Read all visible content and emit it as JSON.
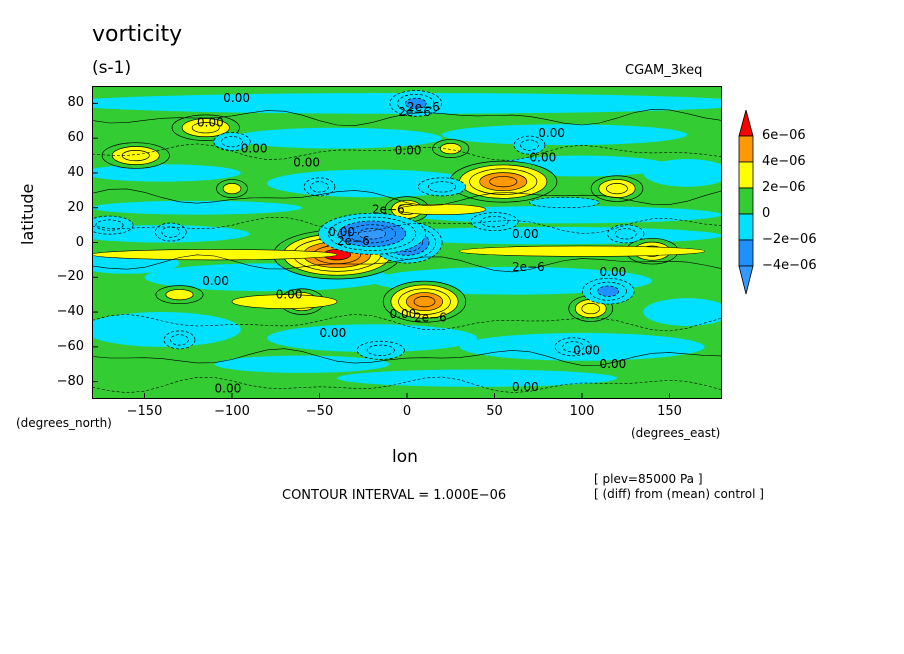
{
  "header": {
    "title": "vorticity",
    "units": "(s-1)",
    "run_name": "CGAM_3keq"
  },
  "axes": {
    "ylabel": "latitude",
    "xlabel": "lon",
    "y_units": "(degrees_north)",
    "x_units": "(degrees_east)",
    "y_ticks": [
      "80",
      "60",
      "40",
      "20",
      "0",
      "−20",
      "−40",
      "−60",
      "−80"
    ],
    "x_ticks": [
      "−150",
      "−100",
      "−50",
      "0",
      "50",
      "100",
      "150"
    ]
  },
  "footer": {
    "contour_interval": "CONTOUR INTERVAL = 1.000E−06",
    "note_level": "[ plev=85000 Pa ]",
    "note_diff": "[ (diff) from (mean) control ]"
  },
  "colorbar": {
    "labels": [
      "6e−06",
      "4e−06",
      "2e−06",
      "0",
      "−2e−06",
      "−4e−06"
    ],
    "colors": [
      "#ff0000",
      "#ff9900",
      "#ffff00",
      "#33cc33",
      "#00e0ff",
      "#1e90ff",
      "#3399ff"
    ]
  },
  "contour_labels": [
    "0.00",
    "2e−6",
    "2e−6",
    "0.00",
    "0.00",
    "0.00",
    "0.00",
    "0.00",
    "0.00",
    "2e−6",
    "0.00",
    "2e−6",
    "0.00",
    "2e−6",
    "0.00",
    "0.00",
    "0.00",
    "0.00",
    "0.00",
    "2e−6",
    "0.00",
    "0.00",
    "0.00",
    "0.00"
  ],
  "chart_data": {
    "type": "heatmap",
    "title": "vorticity",
    "subtitle": "(s-1)",
    "xlabel": "lon",
    "ylabel": "latitude",
    "xlim": [
      -180,
      180
    ],
    "ylim": [
      -90,
      90
    ],
    "x_ticks": [
      -150,
      -100,
      -50,
      0,
      50,
      100,
      150
    ],
    "y_ticks": [
      -80,
      -60,
      -40,
      -20,
      0,
      20,
      40,
      60,
      80
    ],
    "levels": [
      -4e-06,
      -2e-06,
      0,
      2e-06,
      4e-06,
      6e-06
    ],
    "contour_interval": 1e-06,
    "features": [
      {
        "lon": 55,
        "lat": 35,
        "value": 5e-06
      },
      {
        "lon": 10,
        "lat": -34,
        "value": 5e-06
      },
      {
        "lon": -60,
        "lat": -34,
        "value": 3e-06
      },
      {
        "lon": -40,
        "lat": -7,
        "value": 6e-06
      },
      {
        "lon": 140,
        "lat": -5,
        "value": 3e-06
      },
      {
        "lon": 0,
        "lat": 19,
        "value": 3e-06
      },
      {
        "lon": -155,
        "lat": 50,
        "value": 3e-06
      },
      {
        "lon": 120,
        "lat": 31,
        "value": 3e-06
      },
      {
        "lon": -100,
        "lat": 31,
        "value": 2e-06
      },
      {
        "lon": -115,
        "lat": 66,
        "value": 3e-06
      },
      {
        "lon": 25,
        "lat": 54,
        "value": 2e-06
      },
      {
        "lon": 105,
        "lat": -38,
        "value": 3e-06
      },
      {
        "lon": -130,
        "lat": -30,
        "value": 2e-06
      },
      {
        "lon": 5,
        "lat": 80,
        "value": -3e-06
      },
      {
        "lon": -50,
        "lat": 32,
        "value": -2e-06
      },
      {
        "lon": 20,
        "lat": 32,
        "value": -2e-06
      },
      {
        "lon": -100,
        "lat": 58,
        "value": -2e-06
      },
      {
        "lon": 0,
        "lat": 0,
        "value": -5e-06
      },
      {
        "lon": -20,
        "lat": 5,
        "value": -5e-06
      },
      {
        "lon": 125,
        "lat": 5,
        "value": -2e-06
      },
      {
        "lon": -135,
        "lat": 6,
        "value": -2e-06
      },
      {
        "lon": 50,
        "lat": 12,
        "value": -2e-06
      },
      {
        "lon": 115,
        "lat": -28,
        "value": -3e-06
      },
      {
        "lon": -130,
        "lat": -56,
        "value": -2e-06
      },
      {
        "lon": -15,
        "lat": -62,
        "value": -2e-06
      },
      {
        "lon": 95,
        "lat": -60,
        "value": -2e-06
      },
      {
        "lon": 70,
        "lat": 56,
        "value": -2e-06
      },
      {
        "lon": -170,
        "lat": 10,
        "value": -2e-06
      }
    ]
  }
}
